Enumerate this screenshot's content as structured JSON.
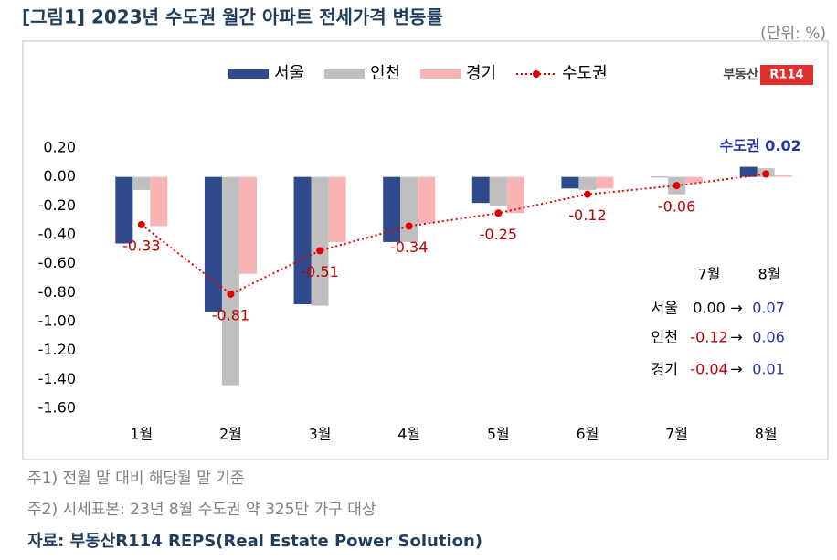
{
  "chart_data": {
    "type": "bar",
    "title": "[그림1] 2023년 수도권 월간 아파트 전세가격 변동률",
    "unit": "(단위: %)",
    "categories": [
      "1월",
      "2월",
      "3월",
      "4월",
      "5월",
      "6월",
      "7월",
      "8월"
    ],
    "series": [
      {
        "name": "서울",
        "color": "#2e4a8c",
        "values": [
          -0.46,
          -0.93,
          -0.88,
          -0.45,
          -0.18,
          -0.08,
          0.0,
          0.07
        ]
      },
      {
        "name": "인천",
        "color": "#bfbfbf",
        "values": [
          -0.09,
          -1.44,
          -0.89,
          -0.45,
          -0.2,
          -0.09,
          -0.12,
          0.06
        ]
      },
      {
        "name": "경기",
        "color": "#f8b4b4",
        "values": [
          -0.34,
          -0.67,
          -0.45,
          -0.32,
          -0.25,
          -0.08,
          -0.04,
          0.01
        ]
      },
      {
        "name": "수도권",
        "type": "line",
        "color": "#e00000",
        "values": [
          -0.33,
          -0.81,
          -0.51,
          -0.34,
          -0.25,
          -0.12,
          -0.06,
          0.02
        ],
        "value_labels": [
          "-0.33",
          "-0.81",
          "-0.51",
          "-0.34",
          "-0.25",
          "-0.12",
          "-0.06",
          "수도권 0.02"
        ]
      }
    ],
    "ylim": [
      -1.6,
      0.2
    ],
    "yticks": [
      {
        "value": 0.2,
        "label": "0.20"
      },
      {
        "value": 0,
        "label": "0.00"
      },
      {
        "value": -0.2,
        "label": "-0.20"
      },
      {
        "value": -0.4,
        "label": "-0.40"
      },
      {
        "value": -0.6,
        "label": "-0.60"
      },
      {
        "value": -0.8,
        "label": "-0.80"
      },
      {
        "value": -1,
        "label": "-1.00"
      },
      {
        "value": -1.2,
        "label": "-1.20"
      },
      {
        "value": -1.4,
        "label": "-1.40"
      },
      {
        "value": -1.6,
        "label": "-1.60"
      }
    ],
    "grid": false,
    "logo": [
      "부동산",
      "R114"
    ],
    "table": {
      "header": [
        "7월",
        "8월"
      ],
      "arrow": "→",
      "rows": [
        [
          "서울",
          "0.00",
          "0.07"
        ],
        [
          "인천",
          "-0.12",
          "0.06"
        ],
        [
          "경기",
          "-0.04",
          "0.01"
        ]
      ]
    },
    "notes": [
      "주1) 전월 말 대비 해당월 말 기준",
      "주2) 시세표본: 23년 8월 수도권 약 325만 가구 대상"
    ],
    "source": "자료: 부동산R114 REPS(Real Estate Power Solution)"
  }
}
